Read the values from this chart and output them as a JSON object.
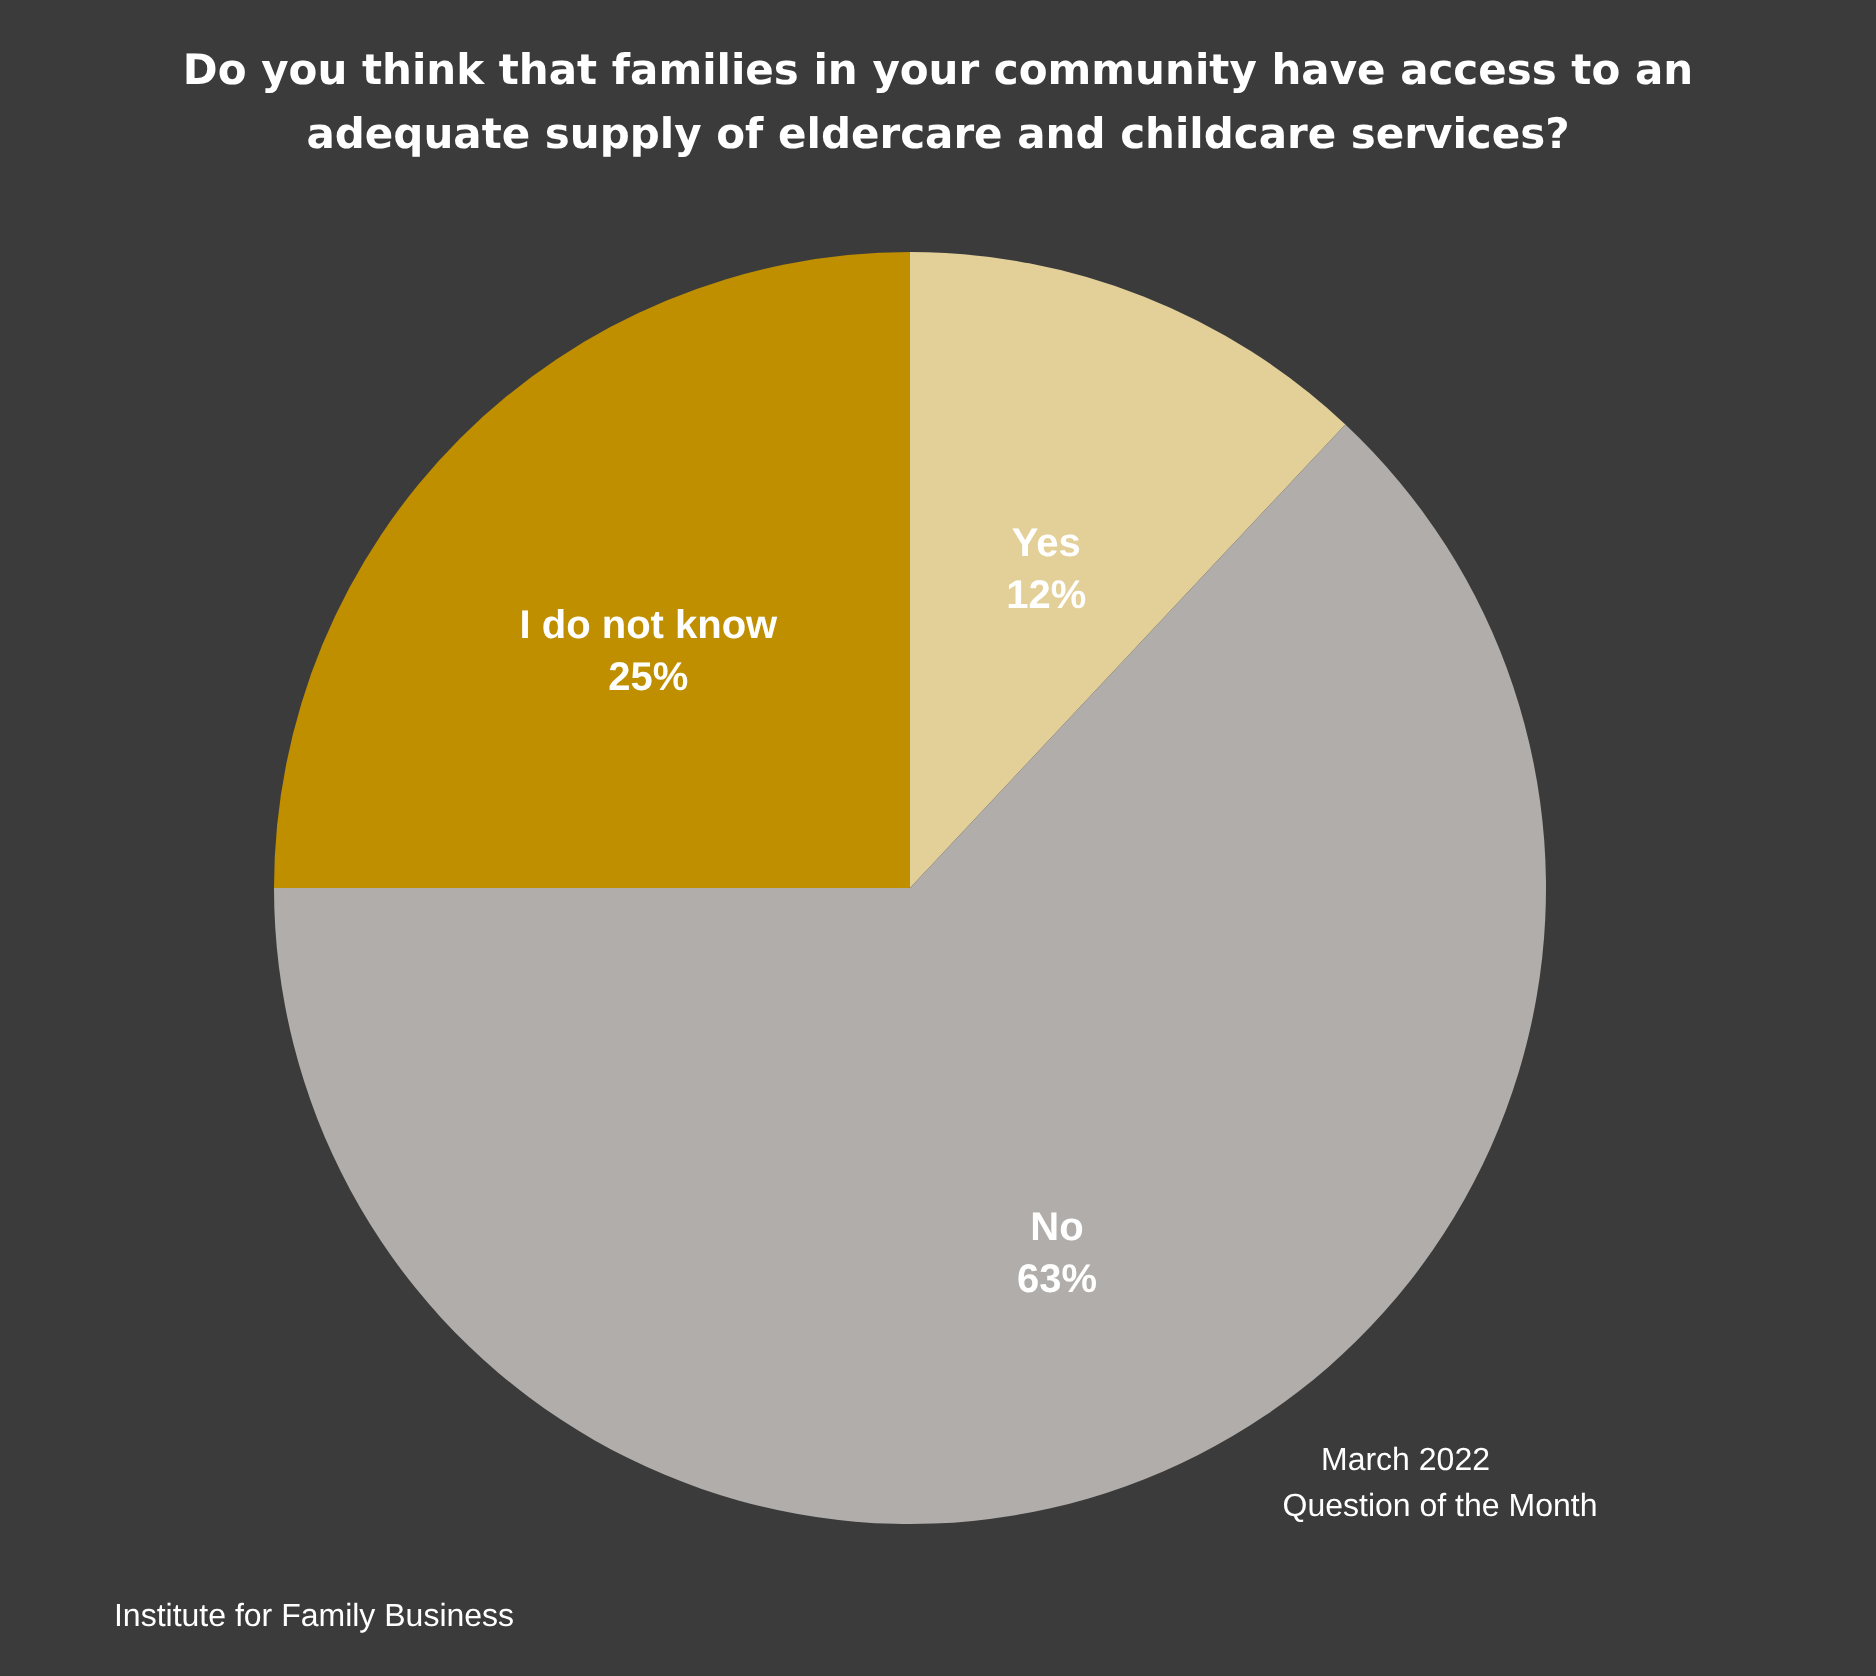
{
  "chart_data": {
    "type": "pie",
    "title": "Do you think that families in your community have access to an adequate supply of eldercare and childcare services?",
    "categories": [
      "Yes",
      "No",
      "I do not know"
    ],
    "values": [
      12,
      63,
      25
    ],
    "value_labels": [
      "12%",
      "63%",
      "25%"
    ],
    "colors": [
      "#e3cf98",
      "#b0adaa",
      "#bf8f00"
    ],
    "annotations": [
      "March 2022",
      "Question of the Month",
      "Institute for Family Business"
    ]
  }
}
